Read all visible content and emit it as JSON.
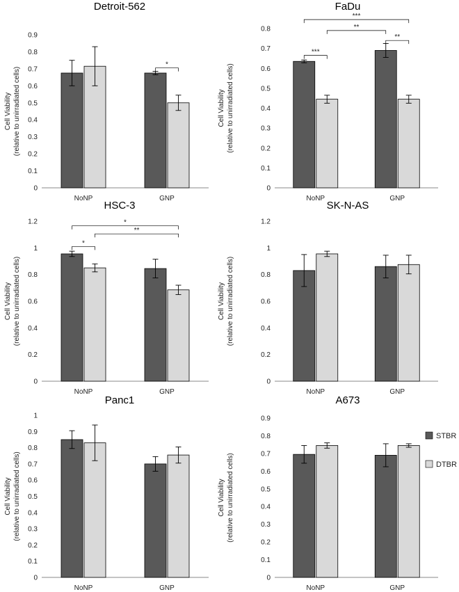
{
  "colors": {
    "STBR": "#595959",
    "DTBR": "#d9d9d9",
    "edge": "#000000",
    "axis": "#888888"
  },
  "legend": {
    "items": [
      {
        "label": "STBR",
        "color": "#595959"
      },
      {
        "label": "DTBR",
        "color": "#d9d9d9"
      }
    ]
  },
  "chart_data": [
    {
      "type": "bar",
      "title": "Detroit-562",
      "ylabel": [
        "Cell Viability",
        "(relative to unirradiated cells)"
      ],
      "categories": [
        "NoNP",
        "GNP"
      ],
      "ylim": [
        0,
        0.9
      ],
      "yticks": [
        0,
        0.1,
        0.2,
        0.3,
        0.4,
        0.5,
        0.6,
        0.7,
        0.8,
        0.9
      ],
      "ytick_labels": [
        "0",
        "0.1",
        "0.2",
        "0.3",
        "0.4",
        "0.5",
        "0.6",
        "0.7",
        "0.8",
        "0.9"
      ],
      "series": [
        {
          "name": "STBR",
          "values": [
            0.675,
            0.675
          ],
          "errors": [
            0.075,
            0.01
          ]
        },
        {
          "name": "DTBR",
          "values": [
            0.715,
            0.5
          ],
          "errors": [
            0.115,
            0.045
          ]
        }
      ],
      "significance": [
        {
          "from": [
            1,
            0
          ],
          "to": [
            1,
            1
          ],
          "label": "*",
          "y": 0.705
        }
      ]
    },
    {
      "type": "bar",
      "title": "FaDu",
      "ylabel": [
        "Cell Viability",
        "(relative to unirradiated cells)"
      ],
      "categories": [
        "NoNP",
        "GNP"
      ],
      "ylim": [
        0,
        0.8
      ],
      "yticks": [
        0,
        0.1,
        0.2,
        0.3,
        0.4,
        0.5,
        0.6,
        0.7,
        0.8
      ],
      "ytick_labels": [
        "0",
        "0.1",
        "0.2",
        "0.3",
        "0.4",
        "0.5",
        "0.6",
        "0.7",
        "0.8"
      ],
      "series": [
        {
          "name": "STBR",
          "values": [
            0.635,
            0.69
          ],
          "errors": [
            0.007,
            0.035
          ]
        },
        {
          "name": "DTBR",
          "values": [
            0.445,
            0.445
          ],
          "errors": [
            0.02,
            0.02
          ]
        }
      ],
      "significance": [
        {
          "from": [
            0,
            0
          ],
          "to": [
            0,
            1
          ],
          "label": "***",
          "y": 0.665
        },
        {
          "from": [
            1,
            0
          ],
          "to": [
            1,
            1
          ],
          "label": "**",
          "y": 0.74
        },
        {
          "from": [
            0,
            1
          ],
          "to": [
            1,
            0
          ],
          "label": "**",
          "y": 0.79
        },
        {
          "from": [
            0,
            0
          ],
          "to": [
            1,
            1
          ],
          "label": "***",
          "y": 0.845
        }
      ]
    },
    {
      "type": "bar",
      "title": "HSC-3",
      "ylabel": [
        "Cell Viability",
        "(relative to unirradiated cells)"
      ],
      "categories": [
        "NoNP",
        "GNP"
      ],
      "ylim": [
        0,
        1.2
      ],
      "yticks": [
        0,
        0.2,
        0.4,
        0.6,
        0.8,
        1.0,
        1.2
      ],
      "ytick_labels": [
        "0",
        "0.2",
        "0.4",
        "0.6",
        "0.8",
        "1",
        "1.2"
      ],
      "series": [
        {
          "name": "STBR",
          "values": [
            0.955,
            0.845
          ],
          "errors": [
            0.02,
            0.07
          ]
        },
        {
          "name": "DTBR",
          "values": [
            0.85,
            0.685
          ],
          "errors": [
            0.03,
            0.035
          ]
        }
      ],
      "significance": [
        {
          "from": [
            0,
            0
          ],
          "to": [
            0,
            1
          ],
          "label": "*",
          "y": 1.01
        },
        {
          "from": [
            0,
            1
          ],
          "to": [
            1,
            1
          ],
          "label": "**",
          "y": 1.105
        },
        {
          "from": [
            0,
            0
          ],
          "to": [
            1,
            1
          ],
          "label": "*",
          "y": 1.165
        }
      ]
    },
    {
      "type": "bar",
      "title": "SK-N-AS",
      "ylabel": [
        "Cell Viability",
        "(relative to unirradiated cells)"
      ],
      "categories": [
        "NoNP",
        "GNP"
      ],
      "ylim": [
        0,
        1.2
      ],
      "yticks": [
        0,
        0.2,
        0.4,
        0.6,
        0.8,
        1.0,
        1.2
      ],
      "ytick_labels": [
        "0",
        "0.2",
        "0.4",
        "0.6",
        "0.8",
        "1",
        "1.2"
      ],
      "series": [
        {
          "name": "STBR",
          "values": [
            0.83,
            0.86
          ],
          "errors": [
            0.12,
            0.085
          ]
        },
        {
          "name": "DTBR",
          "values": [
            0.955,
            0.875
          ],
          "errors": [
            0.02,
            0.07
          ]
        }
      ],
      "significance": []
    },
    {
      "type": "bar",
      "title": "Panc1",
      "ylabel": [
        "Cell Viability",
        "(relative to unirradiated cells)"
      ],
      "categories": [
        "NoNP",
        "GNP"
      ],
      "ylim": [
        0,
        1.0
      ],
      "yticks": [
        0,
        0.1,
        0.2,
        0.3,
        0.4,
        0.5,
        0.6,
        0.7,
        0.8,
        0.9,
        1.0
      ],
      "ytick_labels": [
        "0",
        "0.1",
        "0.2",
        "0.3",
        "0.4",
        "0.5",
        "0.6",
        "0.7",
        "0.8",
        "0.9",
        "1"
      ],
      "series": [
        {
          "name": "STBR",
          "values": [
            0.85,
            0.7
          ],
          "errors": [
            0.055,
            0.045
          ]
        },
        {
          "name": "DTBR",
          "values": [
            0.83,
            0.755
          ],
          "errors": [
            0.11,
            0.05
          ]
        }
      ],
      "significance": []
    },
    {
      "type": "bar",
      "title": "A673",
      "ylabel": [
        "Cell Viability",
        "(relative to unirradiated cells)"
      ],
      "categories": [
        "NoNP",
        "GNP"
      ],
      "ylim": [
        0,
        0.9
      ],
      "yticks": [
        0,
        0.1,
        0.2,
        0.3,
        0.4,
        0.5,
        0.6,
        0.7,
        0.8,
        0.9
      ],
      "ytick_labels": [
        "0",
        "0.1",
        "0.2",
        "0.3",
        "0.4",
        "0.5",
        "0.6",
        "0.7",
        "0.8",
        "0.9"
      ],
      "series": [
        {
          "name": "STBR",
          "values": [
            0.695,
            0.69
          ],
          "errors": [
            0.05,
            0.065
          ]
        },
        {
          "name": "DTBR",
          "values": [
            0.745,
            0.745
          ],
          "errors": [
            0.015,
            0.01
          ]
        }
      ],
      "significance": []
    }
  ]
}
